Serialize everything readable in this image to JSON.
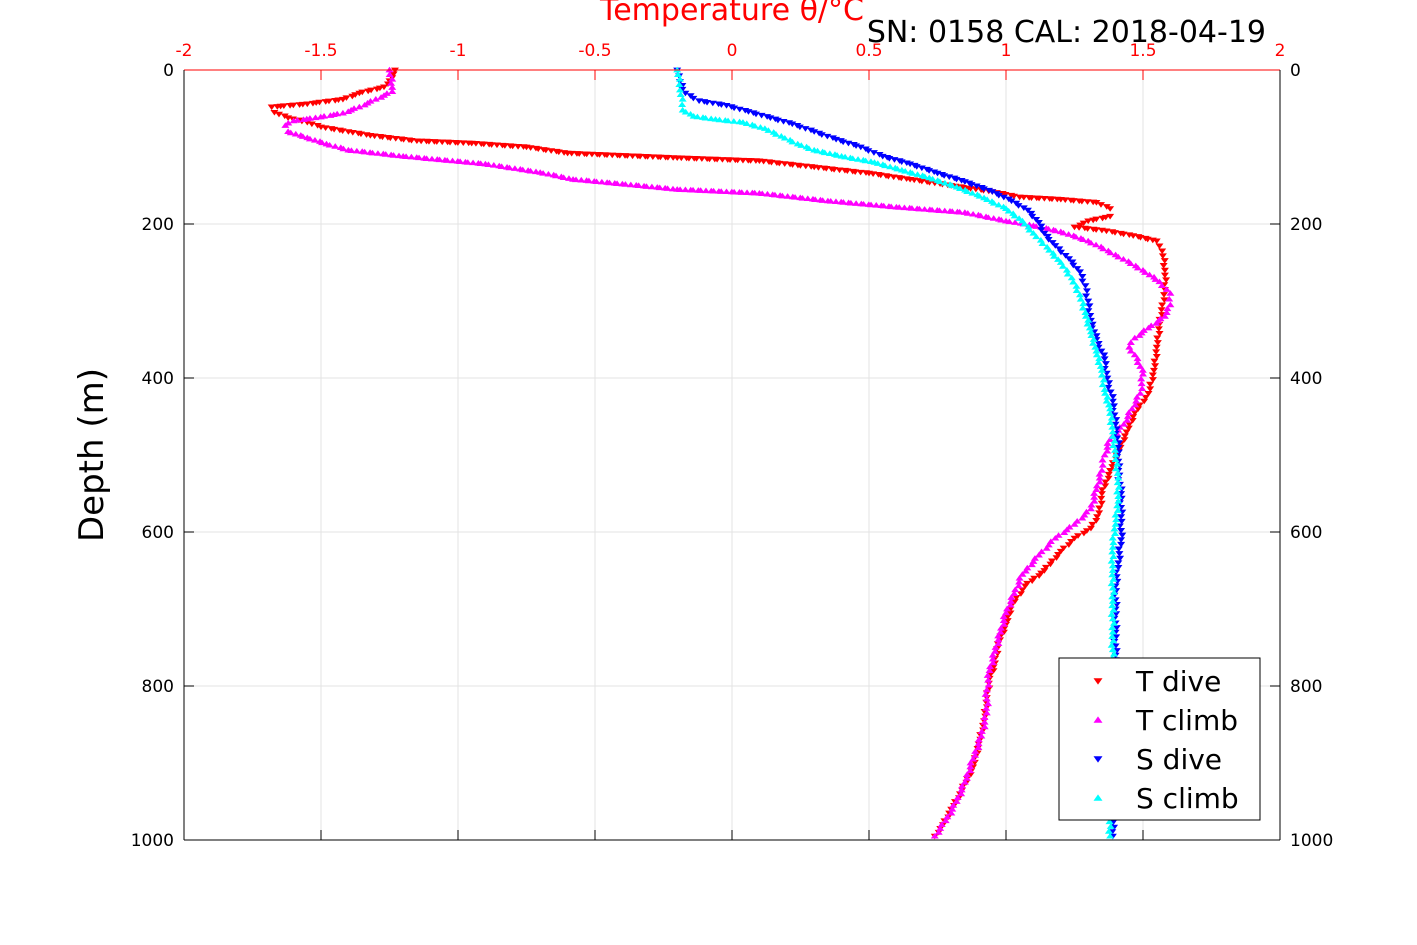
{
  "chart_data": {
    "type": "scatter",
    "title": "Temperature θ/°C",
    "annotation": "SN: 0158  CAL: 2018-04-19",
    "ylabel": "Depth (m)",
    "xlabel": "",
    "xlim": [
      -2,
      2
    ],
    "ylim": [
      0,
      1000
    ],
    "y_reversed": true,
    "grid": true,
    "x_axis_location": "top",
    "x_axis_color": "#ff0000",
    "x_ticks": [
      "-2",
      "-1.5",
      "-1",
      "-0.5",
      "0",
      "0.5",
      "1",
      "1.5",
      "2"
    ],
    "y_ticks": [
      "0",
      "200",
      "400",
      "600",
      "800",
      "1000"
    ],
    "legend_position": "bottom-right",
    "series": [
      {
        "name": "T dive",
        "color": "#ff0000",
        "marker": "triangle-down",
        "points": [
          [
            -1.23,
            0
          ],
          [
            -1.24,
            10
          ],
          [
            -1.27,
            22
          ],
          [
            -1.36,
            30
          ],
          [
            -1.42,
            38
          ],
          [
            -1.55,
            44
          ],
          [
            -1.68,
            48
          ],
          [
            -1.67,
            55
          ],
          [
            -1.62,
            62
          ],
          [
            -1.55,
            68
          ],
          [
            -1.5,
            74
          ],
          [
            -1.4,
            80
          ],
          [
            -1.32,
            85
          ],
          [
            -1.15,
            92
          ],
          [
            -0.95,
            95
          ],
          [
            -0.75,
            100
          ],
          [
            -0.6,
            108
          ],
          [
            -0.2,
            114
          ],
          [
            0.1,
            118
          ],
          [
            0.3,
            126
          ],
          [
            0.5,
            134
          ],
          [
            0.65,
            142
          ],
          [
            0.8,
            150
          ],
          [
            0.95,
            158
          ],
          [
            1.05,
            165
          ],
          [
            1.2,
            168
          ],
          [
            1.33,
            172
          ],
          [
            1.38,
            180
          ],
          [
            1.38,
            190
          ],
          [
            1.3,
            196
          ],
          [
            1.25,
            204
          ],
          [
            1.35,
            208
          ],
          [
            1.45,
            214
          ],
          [
            1.55,
            222
          ],
          [
            1.57,
            235
          ],
          [
            1.58,
            260
          ],
          [
            1.58,
            285
          ],
          [
            1.57,
            305
          ],
          [
            1.56,
            330
          ],
          [
            1.55,
            360
          ],
          [
            1.54,
            390
          ],
          [
            1.52,
            420
          ],
          [
            1.47,
            445
          ],
          [
            1.44,
            470
          ],
          [
            1.41,
            495
          ],
          [
            1.38,
            520
          ],
          [
            1.35,
            550
          ],
          [
            1.34,
            575
          ],
          [
            1.31,
            595
          ],
          [
            1.25,
            608
          ],
          [
            1.2,
            625
          ],
          [
            1.14,
            650
          ],
          [
            1.07,
            670
          ],
          [
            1.02,
            695
          ],
          [
            1.0,
            720
          ],
          [
            0.97,
            745
          ],
          [
            0.96,
            770
          ],
          [
            0.94,
            790
          ],
          [
            0.93,
            815
          ],
          [
            0.92,
            845
          ],
          [
            0.9,
            875
          ],
          [
            0.88,
            905
          ],
          [
            0.84,
            935
          ],
          [
            0.8,
            960
          ],
          [
            0.77,
            980
          ],
          [
            0.74,
            995
          ]
        ]
      },
      {
        "name": "T climb",
        "color": "#ff00ff",
        "marker": "triangle-up",
        "points": [
          [
            -1.25,
            0
          ],
          [
            -1.24,
            12
          ],
          [
            -1.24,
            28
          ],
          [
            -1.3,
            38
          ],
          [
            -1.36,
            48
          ],
          [
            -1.42,
            56
          ],
          [
            -1.52,
            62
          ],
          [
            -1.6,
            66
          ],
          [
            -1.63,
            72
          ],
          [
            -1.62,
            80
          ],
          [
            -1.55,
            88
          ],
          [
            -1.48,
            96
          ],
          [
            -1.4,
            104
          ],
          [
            -1.2,
            112
          ],
          [
            -0.9,
            122
          ],
          [
            -0.7,
            133
          ],
          [
            -0.58,
            142
          ],
          [
            -0.4,
            148
          ],
          [
            -0.2,
            155
          ],
          [
            0.1,
            160
          ],
          [
            0.35,
            170
          ],
          [
            0.6,
            178
          ],
          [
            0.85,
            185
          ],
          [
            1.0,
            196
          ],
          [
            1.1,
            202
          ],
          [
            1.2,
            210
          ],
          [
            1.3,
            222
          ],
          [
            1.4,
            240
          ],
          [
            1.5,
            260
          ],
          [
            1.56,
            275
          ],
          [
            1.6,
            290
          ],
          [
            1.6,
            305
          ],
          [
            1.58,
            320
          ],
          [
            1.52,
            335
          ],
          [
            1.47,
            348
          ],
          [
            1.45,
            360
          ],
          [
            1.48,
            375
          ],
          [
            1.5,
            395
          ],
          [
            1.49,
            420
          ],
          [
            1.46,
            440
          ],
          [
            1.43,
            460
          ],
          [
            1.38,
            480
          ],
          [
            1.36,
            500
          ],
          [
            1.35,
            520
          ],
          [
            1.33,
            545
          ],
          [
            1.31,
            570
          ],
          [
            1.25,
            590
          ],
          [
            1.18,
            608
          ],
          [
            1.12,
            630
          ],
          [
            1.06,
            655
          ],
          [
            1.03,
            680
          ],
          [
            1.0,
            705
          ],
          [
            0.98,
            730
          ],
          [
            0.96,
            755
          ],
          [
            0.94,
            780
          ],
          [
            0.93,
            805
          ],
          [
            0.93,
            835
          ],
          [
            0.91,
            865
          ],
          [
            0.88,
            895
          ],
          [
            0.85,
            925
          ],
          [
            0.82,
            950
          ],
          [
            0.78,
            975
          ],
          [
            0.74,
            995
          ]
        ]
      },
      {
        "name": "S dive",
        "color": "#0000ff",
        "marker": "triangle-down",
        "points": [
          [
            -0.2,
            0
          ],
          [
            -0.19,
            15
          ],
          [
            -0.17,
            30
          ],
          [
            -0.12,
            40
          ],
          [
            -0.02,
            46
          ],
          [
            0.06,
            54
          ],
          [
            0.14,
            62
          ],
          [
            0.22,
            70
          ],
          [
            0.3,
            80
          ],
          [
            0.38,
            90
          ],
          [
            0.47,
            100
          ],
          [
            0.55,
            112
          ],
          [
            0.65,
            122
          ],
          [
            0.75,
            134
          ],
          [
            0.85,
            145
          ],
          [
            0.95,
            158
          ],
          [
            1.02,
            170
          ],
          [
            1.08,
            182
          ],
          [
            1.12,
            198
          ],
          [
            1.14,
            212
          ],
          [
            1.18,
            228
          ],
          [
            1.23,
            245
          ],
          [
            1.27,
            262
          ],
          [
            1.29,
            280
          ],
          [
            1.3,
            300
          ],
          [
            1.31,
            325
          ],
          [
            1.33,
            350
          ],
          [
            1.36,
            375
          ],
          [
            1.37,
            400
          ],
          [
            1.39,
            430
          ],
          [
            1.4,
            460
          ],
          [
            1.41,
            490
          ],
          [
            1.41,
            520
          ],
          [
            1.42,
            550
          ],
          [
            1.42,
            580
          ],
          [
            1.42,
            610
          ],
          [
            1.41,
            640
          ],
          [
            1.4,
            670
          ],
          [
            1.4,
            700
          ],
          [
            1.4,
            730
          ],
          [
            1.4,
            760
          ],
          [
            1.39,
            800
          ],
          [
            1.39,
            840
          ],
          [
            1.39,
            880
          ],
          [
            1.39,
            920
          ],
          [
            1.39,
            960
          ],
          [
            1.39,
            995
          ]
        ]
      },
      {
        "name": "S climb",
        "color": "#00ffff",
        "marker": "triangle-up",
        "points": [
          [
            -0.2,
            0
          ],
          [
            -0.19,
            12
          ],
          [
            -0.19,
            26
          ],
          [
            -0.18,
            38
          ],
          [
            -0.18,
            52
          ],
          [
            -0.14,
            60
          ],
          [
            -0.06,
            64
          ],
          [
            0.04,
            68
          ],
          [
            0.12,
            76
          ],
          [
            0.18,
            86
          ],
          [
            0.24,
            96
          ],
          [
            0.3,
            104
          ],
          [
            0.4,
            112
          ],
          [
            0.52,
            120
          ],
          [
            0.62,
            130
          ],
          [
            0.72,
            140
          ],
          [
            0.82,
            152
          ],
          [
            0.92,
            166
          ],
          [
            1.0,
            180
          ],
          [
            1.06,
            196
          ],
          [
            1.1,
            212
          ],
          [
            1.15,
            230
          ],
          [
            1.2,
            250
          ],
          [
            1.24,
            270
          ],
          [
            1.27,
            292
          ],
          [
            1.29,
            315
          ],
          [
            1.31,
            340
          ],
          [
            1.33,
            365
          ],
          [
            1.35,
            390
          ],
          [
            1.36,
            415
          ],
          [
            1.38,
            440
          ],
          [
            1.39,
            470
          ],
          [
            1.4,
            500
          ],
          [
            1.41,
            530
          ],
          [
            1.41,
            560
          ],
          [
            1.4,
            590
          ],
          [
            1.39,
            620
          ],
          [
            1.39,
            650
          ],
          [
            1.39,
            690
          ],
          [
            1.39,
            730
          ],
          [
            1.39,
            770
          ],
          [
            1.39,
            810
          ],
          [
            1.39,
            850
          ],
          [
            1.39,
            890
          ],
          [
            1.39,
            930
          ],
          [
            1.38,
            970
          ],
          [
            1.38,
            995
          ]
        ]
      }
    ]
  }
}
